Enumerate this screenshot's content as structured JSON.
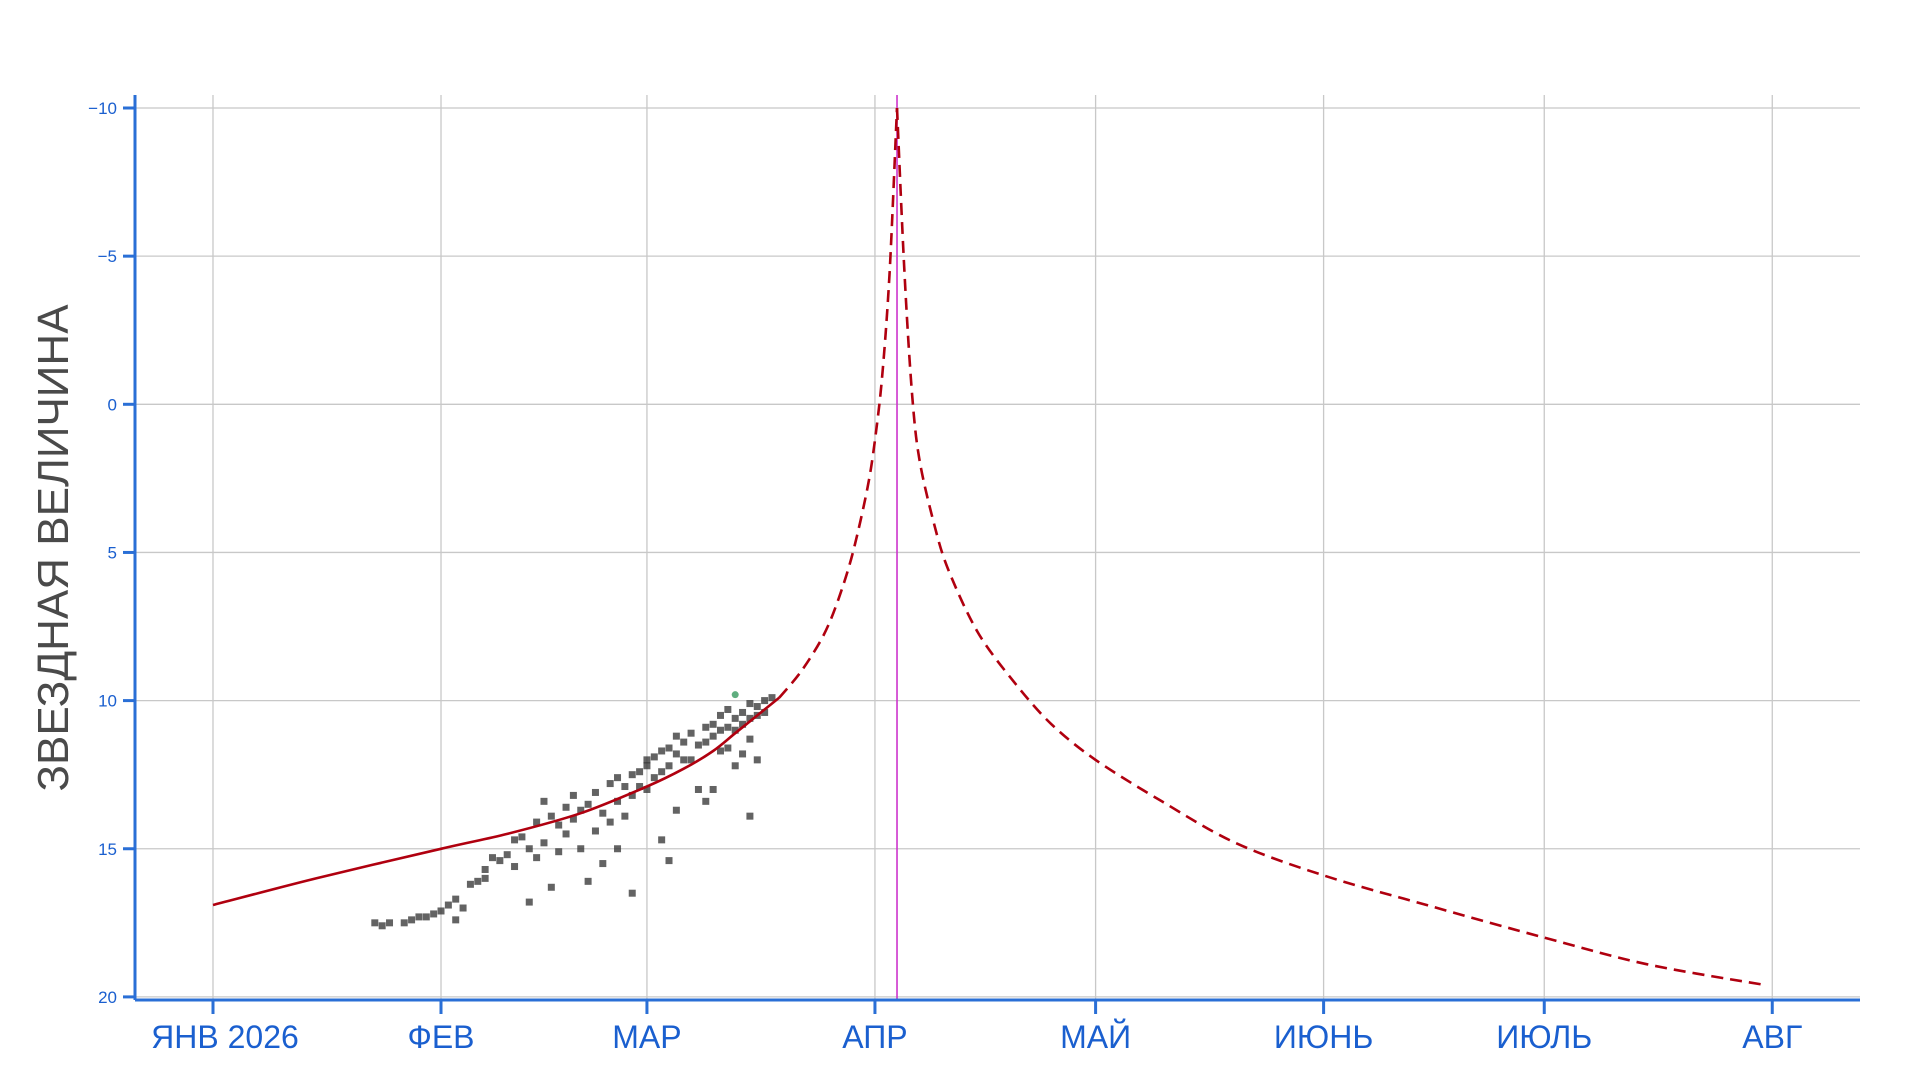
{
  "colors": {
    "axis": "#2a6fd6",
    "tick_labels": "#1a5fcf",
    "grid": "#c8c8c8",
    "curve": "#b0000f",
    "observations": "#2f2f2f",
    "highlight_point": "#5fae7f",
    "perihelion_line": "#cc33cc",
    "ylabel": "#4a4a4a"
  },
  "chart_data": {
    "type": "scatter",
    "title": "",
    "xlabel": "",
    "ylabel": "ЗВЕЗДНАЯ ВЕЛИЧИНА",
    "x_ticks": [
      {
        "date": "2026-01-01",
        "label": "ЯНВ 2026"
      },
      {
        "date": "2026-02-01",
        "label": "ФЕВ"
      },
      {
        "date": "2026-03-01",
        "label": "МАР"
      },
      {
        "date": "2026-04-01",
        "label": "АПР"
      },
      {
        "date": "2026-05-01",
        "label": "МАЙ"
      },
      {
        "date": "2026-06-01",
        "label": "ИЮНЬ"
      },
      {
        "date": "2026-07-01",
        "label": "ИЮЛЬ"
      },
      {
        "date": "2026-08-01",
        "label": "АВГ"
      }
    ],
    "x_range": [
      "2025-12-20",
      "2026-08-10"
    ],
    "y_ticks": [
      {
        "value": -10,
        "label": "−10"
      },
      {
        "value": -5,
        "label": "−5"
      },
      {
        "value": 0,
        "label": "0"
      },
      {
        "value": 5,
        "label": "5"
      },
      {
        "value": 10,
        "label": "10"
      },
      {
        "value": 15,
        "label": "15"
      },
      {
        "value": 20,
        "label": "20"
      }
    ],
    "ylim": [
      -10.5,
      20
    ],
    "y_inverted": true,
    "grid": true,
    "perihelion_date": "2026-04-04",
    "curve": {
      "peak_magnitude": -10,
      "observed_segment": [
        [
          "2026-01-01",
          16.9
        ],
        [
          "2026-01-15",
          16.0
        ],
        [
          "2026-02-01",
          15.0
        ],
        [
          "2026-02-10",
          14.5
        ],
        [
          "2026-02-20",
          13.8
        ],
        [
          "2026-03-01",
          12.9
        ],
        [
          "2026-03-06",
          12.3
        ],
        [
          "2026-03-10",
          11.7
        ],
        [
          "2026-03-13",
          11.1
        ],
        [
          "2026-03-16",
          10.5
        ],
        [
          "2026-03-19",
          9.9
        ]
      ],
      "predicted_segment": [
        [
          "2026-03-19",
          9.9
        ],
        [
          "2026-03-22",
          9.0
        ],
        [
          "2026-03-25",
          7.8
        ],
        [
          "2026-03-27",
          6.6
        ],
        [
          "2026-03-29",
          5.0
        ],
        [
          "2026-03-31",
          2.8
        ],
        [
          "2026-04-01",
          1.2
        ],
        [
          "2026-04-02",
          -1.0
        ],
        [
          "2026-04-03",
          -4.5
        ],
        [
          "2026-04-04",
          -10.0
        ],
        [
          "2026-04-05",
          -4.5
        ],
        [
          "2026-04-06",
          -0.5
        ],
        [
          "2026-04-07",
          1.8
        ],
        [
          "2026-04-09",
          4.0
        ],
        [
          "2026-04-11",
          5.6
        ],
        [
          "2026-04-15",
          7.7
        ],
        [
          "2026-04-20",
          9.4
        ],
        [
          "2026-04-25",
          10.8
        ],
        [
          "2026-05-01",
          12.0
        ],
        [
          "2026-05-10",
          13.4
        ],
        [
          "2026-05-20",
          14.8
        ],
        [
          "2026-06-01",
          15.9
        ],
        [
          "2026-06-15",
          16.9
        ],
        [
          "2026-07-01",
          18.0
        ],
        [
          "2026-07-15",
          18.9
        ],
        [
          "2026-07-31",
          19.6
        ]
      ]
    },
    "series": [
      {
        "values": [
          [
            "2026-01-23",
            17.5
          ],
          [
            "2026-01-24",
            17.6
          ],
          [
            "2026-01-25",
            17.5
          ],
          [
            "2026-01-27",
            17.5
          ],
          [
            "2026-01-28",
            17.4
          ],
          [
            "2026-01-29",
            17.3
          ],
          [
            "2026-01-30",
            17.3
          ],
          [
            "2026-01-31",
            17.2
          ],
          [
            "2026-02-01",
            17.1
          ],
          [
            "2026-02-02",
            16.9
          ],
          [
            "2026-02-03",
            16.7
          ],
          [
            "2026-02-03",
            17.4
          ],
          [
            "2026-02-04",
            17.0
          ],
          [
            "2026-02-05",
            16.2
          ],
          [
            "2026-02-06",
            16.1
          ],
          [
            "2026-02-07",
            15.7
          ],
          [
            "2026-02-07",
            16.0
          ],
          [
            "2026-02-08",
            15.3
          ],
          [
            "2026-02-09",
            15.4
          ],
          [
            "2026-02-10",
            15.2
          ],
          [
            "2026-02-11",
            14.7
          ],
          [
            "2026-02-11",
            15.6
          ],
          [
            "2026-02-12",
            14.6
          ],
          [
            "2026-02-13",
            15.0
          ],
          [
            "2026-02-13",
            16.8
          ],
          [
            "2026-02-14",
            14.1
          ],
          [
            "2026-02-14",
            15.3
          ],
          [
            "2026-02-15",
            13.4
          ],
          [
            "2026-02-15",
            14.8
          ],
          [
            "2026-02-16",
            13.9
          ],
          [
            "2026-02-16",
            16.3
          ],
          [
            "2026-02-17",
            14.2
          ],
          [
            "2026-02-17",
            15.1
          ],
          [
            "2026-02-18",
            13.6
          ],
          [
            "2026-02-18",
            14.5
          ],
          [
            "2026-02-19",
            13.2
          ],
          [
            "2026-02-19",
            14.0
          ],
          [
            "2026-02-20",
            13.7
          ],
          [
            "2026-02-20",
            15.0
          ],
          [
            "2026-02-21",
            13.5
          ],
          [
            "2026-02-21",
            16.1
          ],
          [
            "2026-02-22",
            13.1
          ],
          [
            "2026-02-22",
            14.4
          ],
          [
            "2026-02-23",
            13.8
          ],
          [
            "2026-02-23",
            15.5
          ],
          [
            "2026-02-24",
            12.8
          ],
          [
            "2026-02-24",
            14.1
          ],
          [
            "2026-02-25",
            12.6
          ],
          [
            "2026-02-25",
            13.4
          ],
          [
            "2026-02-25",
            15.0
          ],
          [
            "2026-02-26",
            12.9
          ],
          [
            "2026-02-26",
            13.9
          ],
          [
            "2026-02-27",
            12.5
          ],
          [
            "2026-02-27",
            13.2
          ],
          [
            "2026-02-27",
            16.5
          ],
          [
            "2026-02-28",
            12.4
          ],
          [
            "2026-02-28",
            12.9
          ],
          [
            "2026-03-01",
            12.2
          ],
          [
            "2026-03-01",
            13.0
          ],
          [
            "2026-03-01",
            12.0
          ],
          [
            "2026-03-02",
            11.9
          ],
          [
            "2026-03-02",
            12.6
          ],
          [
            "2026-03-03",
            11.7
          ],
          [
            "2026-03-03",
            12.4
          ],
          [
            "2026-03-03",
            14.7
          ],
          [
            "2026-03-04",
            11.6
          ],
          [
            "2026-03-04",
            12.2
          ],
          [
            "2026-03-04",
            15.4
          ],
          [
            "2026-03-05",
            11.2
          ],
          [
            "2026-03-05",
            11.8
          ],
          [
            "2026-03-05",
            13.7
          ],
          [
            "2026-03-06",
            11.4
          ],
          [
            "2026-03-06",
            12.0
          ],
          [
            "2026-03-07",
            11.1
          ],
          [
            "2026-03-07",
            12.0
          ],
          [
            "2026-03-08",
            11.5
          ],
          [
            "2026-03-08",
            13.0
          ],
          [
            "2026-03-09",
            10.9
          ],
          [
            "2026-03-09",
            11.4
          ],
          [
            "2026-03-09",
            13.4
          ],
          [
            "2026-03-10",
            10.8
          ],
          [
            "2026-03-10",
            11.2
          ],
          [
            "2026-03-10",
            13.0
          ],
          [
            "2026-03-11",
            10.5
          ],
          [
            "2026-03-11",
            11.0
          ],
          [
            "2026-03-11",
            11.7
          ],
          [
            "2026-03-12",
            10.3
          ],
          [
            "2026-03-12",
            10.9
          ],
          [
            "2026-03-12",
            11.6
          ],
          [
            "2026-03-13",
            10.6
          ],
          [
            "2026-03-13",
            11.0
          ],
          [
            "2026-03-13",
            12.2
          ],
          [
            "2026-03-14",
            10.4
          ],
          [
            "2026-03-14",
            10.8
          ],
          [
            "2026-03-14",
            11.8
          ],
          [
            "2026-03-15",
            10.1
          ],
          [
            "2026-03-15",
            10.6
          ],
          [
            "2026-03-15",
            11.3
          ],
          [
            "2026-03-15",
            13.9
          ],
          [
            "2026-03-16",
            10.2
          ],
          [
            "2026-03-16",
            10.5
          ],
          [
            "2026-03-16",
            12.0
          ],
          [
            "2026-03-17",
            10.0
          ],
          [
            "2026-03-17",
            10.4
          ],
          [
            "2026-03-18",
            9.9
          ]
        ]
      },
      {
        "values": [
          [
            "2026-03-13",
            9.8
          ]
        ]
      }
    ]
  }
}
